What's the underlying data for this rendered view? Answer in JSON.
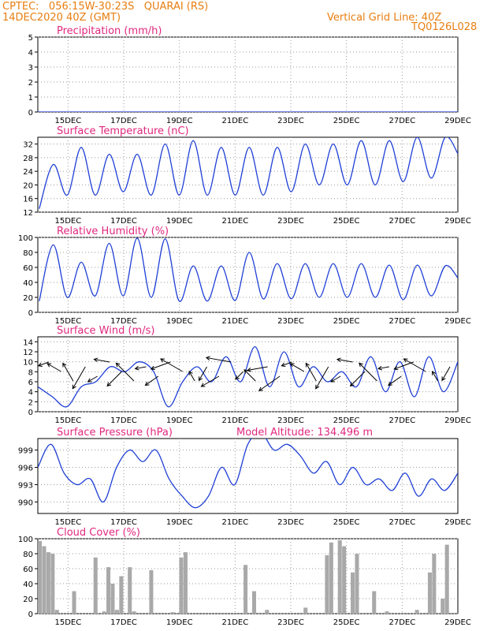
{
  "header": {
    "line1": "CPTEC:   056:15W-30:23S   QUARAI (RS)",
    "line2": "14DEC2020 40Z (GMT)",
    "grid_note": "Vertical Grid Line: 40Z",
    "run_id": "TQ0126L028"
  },
  "colors": {
    "series": "#1f3fd6",
    "title": "#e0287f",
    "header": "#e87e10",
    "cloud": "#a9a9a9",
    "grid": "#9a9a9a"
  },
  "chart_data": [
    {
      "id": "precip",
      "type": "line",
      "title": "Precipitation (mm/h)",
      "x_ticks": [
        "15DEC",
        "17DEC",
        "19DEC",
        "21DEC",
        "23DEC",
        "25DEC",
        "27DEC",
        "29DEC"
      ],
      "ylim": [
        0,
        5
      ],
      "yticks": [
        0,
        1,
        2,
        3,
        4,
        5
      ],
      "grid": true,
      "series": [
        {
          "values": [
            0,
            0,
            0,
            0,
            0,
            0,
            0,
            0,
            0,
            0,
            0,
            0,
            0,
            0,
            0,
            0
          ]
        }
      ]
    },
    {
      "id": "temp",
      "type": "line",
      "title": "Surface Temperature (nC)",
      "x_ticks": [
        "15DEC",
        "17DEC",
        "19DEC",
        "21DEC",
        "23DEC",
        "25DEC",
        "27DEC",
        "29DEC"
      ],
      "ylim": [
        12,
        34
      ],
      "yticks": [
        12,
        16,
        20,
        24,
        28,
        32
      ],
      "grid": true,
      "series": [
        {
          "mins": [
            13,
            17,
            17,
            18,
            17,
            17,
            17,
            17,
            17,
            18,
            20,
            20,
            20,
            21,
            22
          ],
          "maxs": [
            26,
            31,
            29,
            29,
            32,
            33,
            31,
            31,
            31,
            32,
            32,
            33,
            33,
            34,
            34
          ]
        }
      ]
    },
    {
      "id": "rh",
      "type": "line",
      "title": "Relative Humidity (%)",
      "x_ticks": [
        "15DEC",
        "17DEC",
        "19DEC",
        "21DEC",
        "23DEC",
        "25DEC",
        "27DEC",
        "29DEC"
      ],
      "ylim": [
        0,
        100
      ],
      "yticks": [
        0,
        20,
        40,
        60,
        80,
        100
      ],
      "grid": true,
      "series": [
        {
          "mins": [
            15,
            20,
            22,
            22,
            20,
            15,
            15,
            16,
            18,
            18,
            20,
            20,
            20,
            17,
            22
          ],
          "maxs": [
            90,
            67,
            92,
            99,
            98,
            62,
            62,
            80,
            65,
            65,
            65,
            65,
            63,
            63,
            62
          ]
        }
      ]
    },
    {
      "id": "wind",
      "type": "line",
      "title": "Surface Wind (m/s)",
      "x_ticks": [
        "15DEC",
        "17DEC",
        "19DEC",
        "21DEC",
        "23DEC",
        "25DEC",
        "27DEC",
        "29DEC"
      ],
      "ylim": [
        0,
        15
      ],
      "yticks": [
        0,
        2,
        4,
        6,
        8,
        10,
        12,
        14
      ],
      "grid": true,
      "series": [
        {
          "values": [
            5,
            3,
            1,
            5,
            6,
            9,
            8,
            10,
            8,
            1,
            6,
            9,
            6,
            11,
            6,
            13,
            5,
            12,
            5,
            9,
            6,
            8,
            5,
            11,
            4,
            10,
            3,
            11,
            4,
            10
          ]
        }
      ]
    },
    {
      "id": "pressure",
      "type": "line",
      "title": "Surface Pressure (hPa)",
      "annotation": "Model Altitude: 134.496 m",
      "x_ticks": [
        "15DEC",
        "17DEC",
        "19DEC",
        "21DEC",
        "23DEC",
        "25DEC",
        "27DEC",
        "29DEC"
      ],
      "ylim": [
        988,
        1001
      ],
      "yticks": [
        990,
        993,
        996,
        999
      ],
      "grid": true,
      "series": [
        {
          "values": [
            996,
            1000,
            995,
            993,
            994,
            990,
            996,
            999,
            997,
            999,
            994,
            991,
            989,
            991,
            996,
            993,
            1000,
            1002,
            999,
            1000,
            998,
            995,
            997,
            993,
            996,
            993,
            994,
            992,
            995,
            991,
            994,
            992,
            995
          ]
        }
      ]
    },
    {
      "id": "cloud",
      "type": "bar",
      "title": "Cloud Cover (%)",
      "x_ticks": [
        "15DEC",
        "17DEC",
        "19DEC",
        "21DEC",
        "23DEC",
        "25DEC",
        "27DEC",
        "29DEC"
      ],
      "ylim": [
        0,
        100
      ],
      "yticks": [
        0,
        20,
        40,
        60,
        80,
        100
      ],
      "grid": true,
      "series": [
        {
          "values": [
            97,
            90,
            82,
            80,
            5,
            0,
            0,
            0,
            30,
            0,
            0,
            0,
            0,
            75,
            0,
            3,
            62,
            40,
            5,
            50,
            0,
            62,
            3,
            0,
            0,
            0,
            58,
            0,
            0,
            0,
            0,
            2,
            0,
            75,
            82,
            0,
            0,
            0,
            0,
            0,
            0,
            0,
            0,
            0,
            0,
            0,
            0,
            0,
            65,
            0,
            30,
            0,
            0,
            5,
            0,
            0,
            0,
            0,
            0,
            0,
            0,
            0,
            8,
            0,
            0,
            0,
            0,
            78,
            95,
            0,
            98,
            90,
            0,
            55,
            80,
            0,
            0,
            0,
            30,
            0,
            0,
            3,
            0,
            0,
            0,
            0,
            0,
            0,
            5,
            0,
            0,
            55,
            80,
            0,
            20,
            92,
            0,
            0
          ]
        }
      ]
    }
  ]
}
